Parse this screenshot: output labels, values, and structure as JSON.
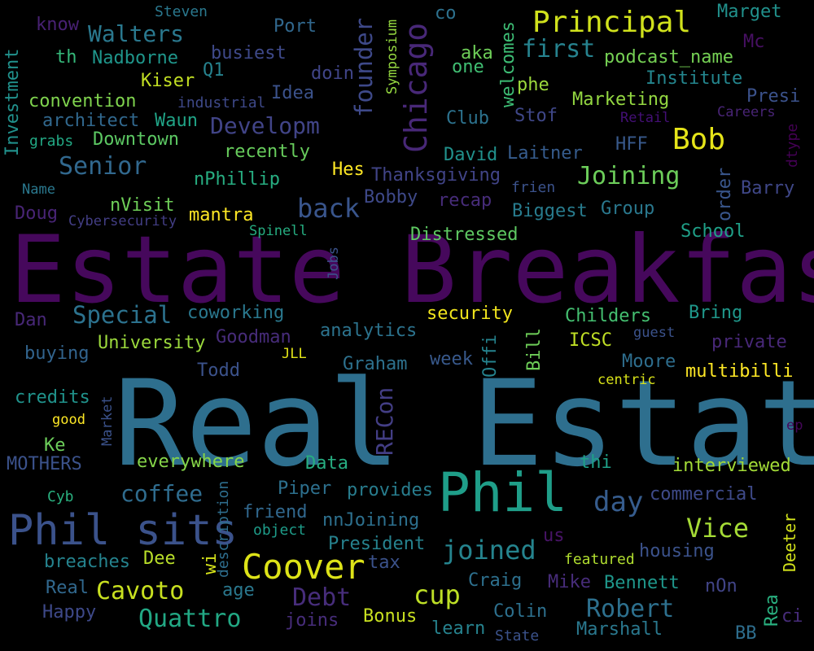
{
  "words": [
    {
      "text": "Real Estate",
      "color": "#2e6f8e"
    },
    {
      "text": "Estate Breakfast",
      "color": "#46085c"
    },
    {
      "text": "Phil",
      "color": "#1f9e89"
    },
    {
      "text": "Phil sits",
      "color": "#3b528b"
    },
    {
      "text": "Coover",
      "color": "#dde318"
    },
    {
      "text": "Chicago",
      "color": "#482878"
    },
    {
      "text": "Principal",
      "color": "#d0e11c"
    },
    {
      "text": "Bob",
      "color": "#e5e419"
    },
    {
      "text": "Walters",
      "color": "#2a788e"
    },
    {
      "text": "Developm",
      "color": "#414487"
    },
    {
      "text": "Senior",
      "color": "#31688e"
    },
    {
      "text": "Joining",
      "color": "#6ccd5a"
    },
    {
      "text": "first",
      "color": "#26828e"
    },
    {
      "text": "founder",
      "color": "#3e4989"
    },
    {
      "text": "back",
      "color": "#39558c"
    },
    {
      "text": "Special",
      "color": "#2c728e"
    },
    {
      "text": "day",
      "color": "#365c8d"
    },
    {
      "text": "Vice",
      "color": "#a5db36"
    },
    {
      "text": "joined",
      "color": "#25848e"
    },
    {
      "text": "Robert",
      "color": "#2d708e"
    },
    {
      "text": "Debt",
      "color": "#472d7b"
    },
    {
      "text": "cup",
      "color": "#bddf26"
    },
    {
      "text": "Cavoto",
      "color": "#c8e020"
    },
    {
      "text": "Quattro",
      "color": "#22a884"
    },
    {
      "text": "coffee",
      "color": "#2f6c8e"
    },
    {
      "text": "RECon",
      "color": "#433e85"
    },
    {
      "text": "Deeter",
      "color": "#d2e21b"
    },
    {
      "text": "Steven",
      "color": "#2a788e"
    },
    {
      "text": "know",
      "color": "#482173"
    },
    {
      "text": "co",
      "color": "#2d718e"
    },
    {
      "text": "Marget",
      "color": "#21918c"
    },
    {
      "text": "Symposium",
      "color": "#95d840"
    },
    {
      "text": "Port",
      "color": "#31688e"
    },
    {
      "text": "Mc",
      "color": "#471063"
    },
    {
      "text": "th",
      "color": "#35b779"
    },
    {
      "text": "Nadborne",
      "color": "#1f968b"
    },
    {
      "text": "busiest",
      "color": "#3e4989"
    },
    {
      "text": "aka",
      "color": "#6ece58"
    },
    {
      "text": "podcast_name",
      "color": "#75d054"
    },
    {
      "text": "one",
      "color": "#40bd72"
    },
    {
      "text": "welcomes",
      "color": "#3dbc74"
    },
    {
      "text": "Q1",
      "color": "#26828e"
    },
    {
      "text": "doin",
      "color": "#404588"
    },
    {
      "text": "Institute",
      "color": "#24868e"
    },
    {
      "text": "Kiser",
      "color": "#c2df23"
    },
    {
      "text": "phe",
      "color": "#9bd93c"
    },
    {
      "text": "Presi",
      "color": "#3b528b"
    },
    {
      "text": "Idea",
      "color": "#3b528b"
    },
    {
      "text": "convention",
      "color": "#7fd34e"
    },
    {
      "text": "industrial",
      "color": "#3e4989"
    },
    {
      "text": "Marketing",
      "color": "#93d741"
    },
    {
      "text": "Careers",
      "color": "#482475"
    },
    {
      "text": "Investment",
      "color": "#21918c"
    },
    {
      "text": "architect",
      "color": "#31688e"
    },
    {
      "text": "Waun",
      "color": "#20a386"
    },
    {
      "text": "Club",
      "color": "#2c728e"
    },
    {
      "text": "Stof",
      "color": "#3f4788"
    },
    {
      "text": "Retail",
      "color": "#440f76"
    },
    {
      "text": "grabs",
      "color": "#22a884"
    },
    {
      "text": "Downtown",
      "color": "#5cc863"
    },
    {
      "text": "HFF",
      "color": "#38598c"
    },
    {
      "text": "dtype",
      "color": "#440154"
    },
    {
      "text": "recently",
      "color": "#67cc5c"
    },
    {
      "text": "David",
      "color": "#21918c"
    },
    {
      "text": "Laitner",
      "color": "#365c8d"
    },
    {
      "text": "Hes",
      "color": "#fde725"
    },
    {
      "text": "Thanksgiving",
      "color": "#414487"
    },
    {
      "text": "order",
      "color": "#39568c"
    },
    {
      "text": "frien",
      "color": "#3b528b"
    },
    {
      "text": "Barry",
      "color": "#3f4788"
    },
    {
      "text": "Name",
      "color": "#2a788e"
    },
    {
      "text": "nPhillip",
      "color": "#27ad81"
    },
    {
      "text": "Bobby",
      "color": "#3e4989"
    },
    {
      "text": "recap",
      "color": "#472c7a"
    },
    {
      "text": "Biggest",
      "color": "#287c8e"
    },
    {
      "text": "Group",
      "color": "#2a788e"
    },
    {
      "text": "nVisit",
      "color": "#6ece58"
    },
    {
      "text": "Doug",
      "color": "#482475"
    },
    {
      "text": "mantra",
      "color": "#fde725"
    },
    {
      "text": "Cybersecurity",
      "color": "#433e85"
    },
    {
      "text": "Spinell",
      "color": "#26ad81"
    },
    {
      "text": "Distressed",
      "color": "#5ec962"
    },
    {
      "text": "School",
      "color": "#1fa088"
    },
    {
      "text": "Jobs",
      "color": "#3b528b"
    },
    {
      "text": "Dan",
      "color": "#482878"
    },
    {
      "text": "coworking",
      "color": "#2a788e"
    },
    {
      "text": "security",
      "color": "#f1e51d"
    },
    {
      "text": "Childers",
      "color": "#44bf70"
    },
    {
      "text": "Bring",
      "color": "#1f988b"
    },
    {
      "text": "analytics",
      "color": "#2c738e"
    },
    {
      "text": "guest",
      "color": "#3b528b"
    },
    {
      "text": "buying",
      "color": "#32648e"
    },
    {
      "text": "University",
      "color": "#9bd93c"
    },
    {
      "text": "Goodman",
      "color": "#472c7a"
    },
    {
      "text": "JLL",
      "color": "#e2e418"
    },
    {
      "text": "Graham",
      "color": "#2d718e"
    },
    {
      "text": "week",
      "color": "#38598c"
    },
    {
      "text": "Offi",
      "color": "#25838e"
    },
    {
      "text": "Bill",
      "color": "#6ece58"
    },
    {
      "text": "ICSC",
      "color": "#c0df25"
    },
    {
      "text": "private",
      "color": "#482878"
    },
    {
      "text": "Moore",
      "color": "#2e6e8e"
    },
    {
      "text": "Todd",
      "color": "#3b528b"
    },
    {
      "text": "multibilli",
      "color": "#fde725"
    },
    {
      "text": "centric",
      "color": "#d8e219"
    },
    {
      "text": "credits",
      "color": "#20938c"
    },
    {
      "text": "Market",
      "color": "#3b528b"
    },
    {
      "text": "good",
      "color": "#fde725"
    },
    {
      "text": "Ke",
      "color": "#6ccd5a"
    },
    {
      "text": "MOTHERS",
      "color": "#3b528b"
    },
    {
      "text": "everywhere",
      "color": "#86d549"
    },
    {
      "text": "Data",
      "color": "#27ad81"
    },
    {
      "text": "thi",
      "color": "#1fa188"
    },
    {
      "text": "interviewed",
      "color": "#a2da37"
    },
    {
      "text": "ep",
      "color": "#46075a"
    },
    {
      "text": "Cyb",
      "color": "#2ab07f"
    },
    {
      "text": "description",
      "color": "#2e6e8e"
    },
    {
      "text": "Piper",
      "color": "#2d708e"
    },
    {
      "text": "provides",
      "color": "#287d8e"
    },
    {
      "text": "commercial",
      "color": "#3e4a89"
    },
    {
      "text": "friend",
      "color": "#31688e"
    },
    {
      "text": "object",
      "color": "#1e9c89"
    },
    {
      "text": "nnJoining",
      "color": "#2d708e"
    },
    {
      "text": "President",
      "color": "#26828e"
    },
    {
      "text": "us",
      "color": "#481467"
    },
    {
      "text": "housing",
      "color": "#3b528b"
    },
    {
      "text": "breaches",
      "color": "#25838e"
    },
    {
      "text": "Dee",
      "color": "#b8de29"
    },
    {
      "text": "wi",
      "color": "#d5e21a"
    },
    {
      "text": "tax",
      "color": "#3b528b"
    },
    {
      "text": "featured",
      "color": "#b0dd2f"
    },
    {
      "text": "Real",
      "color": "#31688e"
    },
    {
      "text": "age",
      "color": "#2a788e"
    },
    {
      "text": "Craig",
      "color": "#2d708e"
    },
    {
      "text": "Mike",
      "color": "#472c7a"
    },
    {
      "text": "Bennett",
      "color": "#1f978b"
    },
    {
      "text": "nOn",
      "color": "#414487"
    },
    {
      "text": "Happy",
      "color": "#3e4989"
    },
    {
      "text": "joins",
      "color": "#472d7b"
    },
    {
      "text": "Bonus",
      "color": "#c8e020"
    },
    {
      "text": "Colin",
      "color": "#2d708e"
    },
    {
      "text": "Rea",
      "color": "#29af7f"
    },
    {
      "text": "learn",
      "color": "#26828e"
    },
    {
      "text": "Marshall",
      "color": "#2a788e"
    },
    {
      "text": "State",
      "color": "#3b528b"
    },
    {
      "text": "BB",
      "color": "#2e6e8e"
    },
    {
      "text": "ci",
      "color": "#472c7a"
    }
  ]
}
